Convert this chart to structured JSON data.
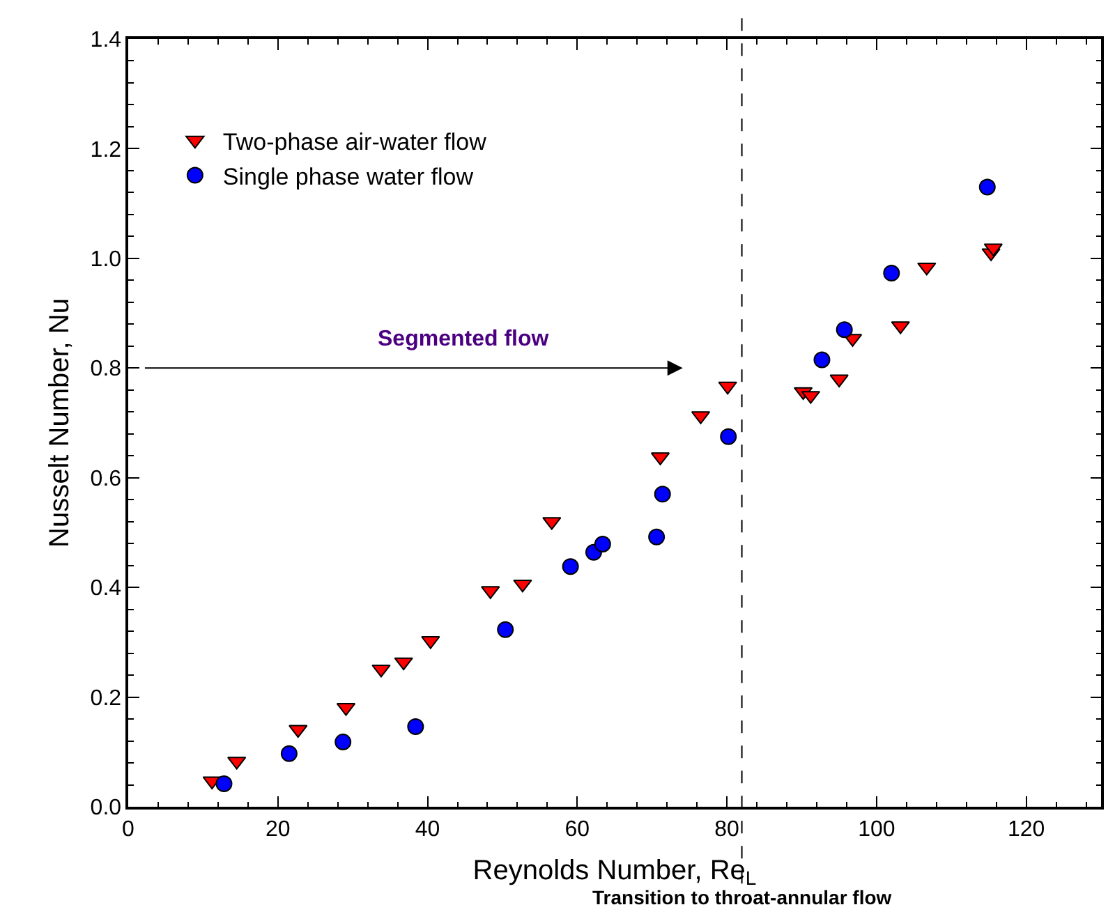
{
  "chart_data": {
    "type": "scatter",
    "xlabel": "Reynolds Number, Re$_{L}$",
    "ylabel": "Nusselt Number, Nu",
    "xlim": [
      0,
      130
    ],
    "xticks": [
      0,
      20,
      40,
      60,
      80,
      100,
      120
    ],
    "ylim": [
      0,
      1.4
    ],
    "yticks": [
      {
        "value": 0,
        "label": "0.0"
      },
      0.2,
      0.4,
      0.6,
      0.8,
      {
        "value": 1,
        "label": "1.0"
      },
      1.2,
      1.4
    ],
    "legend": "top left",
    "series": [
      {
        "name": "Two-phase air-water flow",
        "color": "#ff0000",
        "marker": "triangle-down",
        "x": [
          11.2,
          14.5,
          22.7,
          29.1,
          33.8,
          36.8,
          40.4,
          48.4,
          52.7,
          56.6,
          71.1,
          76.5,
          80.1,
          90.2,
          91.2,
          95.0,
          96.8,
          103.2,
          106.7,
          115.3,
          115.6
        ],
        "values": [
          0.047,
          0.083,
          0.141,
          0.181,
          0.251,
          0.264,
          0.303,
          0.394,
          0.406,
          0.52,
          0.638,
          0.713,
          0.767,
          0.757,
          0.75,
          0.78,
          0.854,
          0.877,
          0.984,
          1.01,
          1.019
        ]
      },
      {
        "name": "Single phase water flow",
        "color": "#0000ff",
        "marker": "circle",
        "x": [
          12.8,
          21.5,
          28.7,
          38.4,
          50.4,
          59.1,
          62.2,
          63.4,
          70.6,
          71.4,
          80.2,
          92.7,
          95.7,
          102.0,
          114.8
        ],
        "values": [
          0.042,
          0.097,
          0.118,
          0.146,
          0.323,
          0.438,
          0.464,
          0.479,
          0.492,
          0.57,
          0.675,
          0.815,
          0.87,
          0.973,
          1.13
        ]
      }
    ],
    "ref_lines": [
      {
        "axis": "x",
        "value": 82,
        "label": "Transition to throat-annular flow",
        "line_style": "dashed",
        "color": "#000000"
      }
    ],
    "annotations": [
      "Segmented flow"
    ]
  }
}
